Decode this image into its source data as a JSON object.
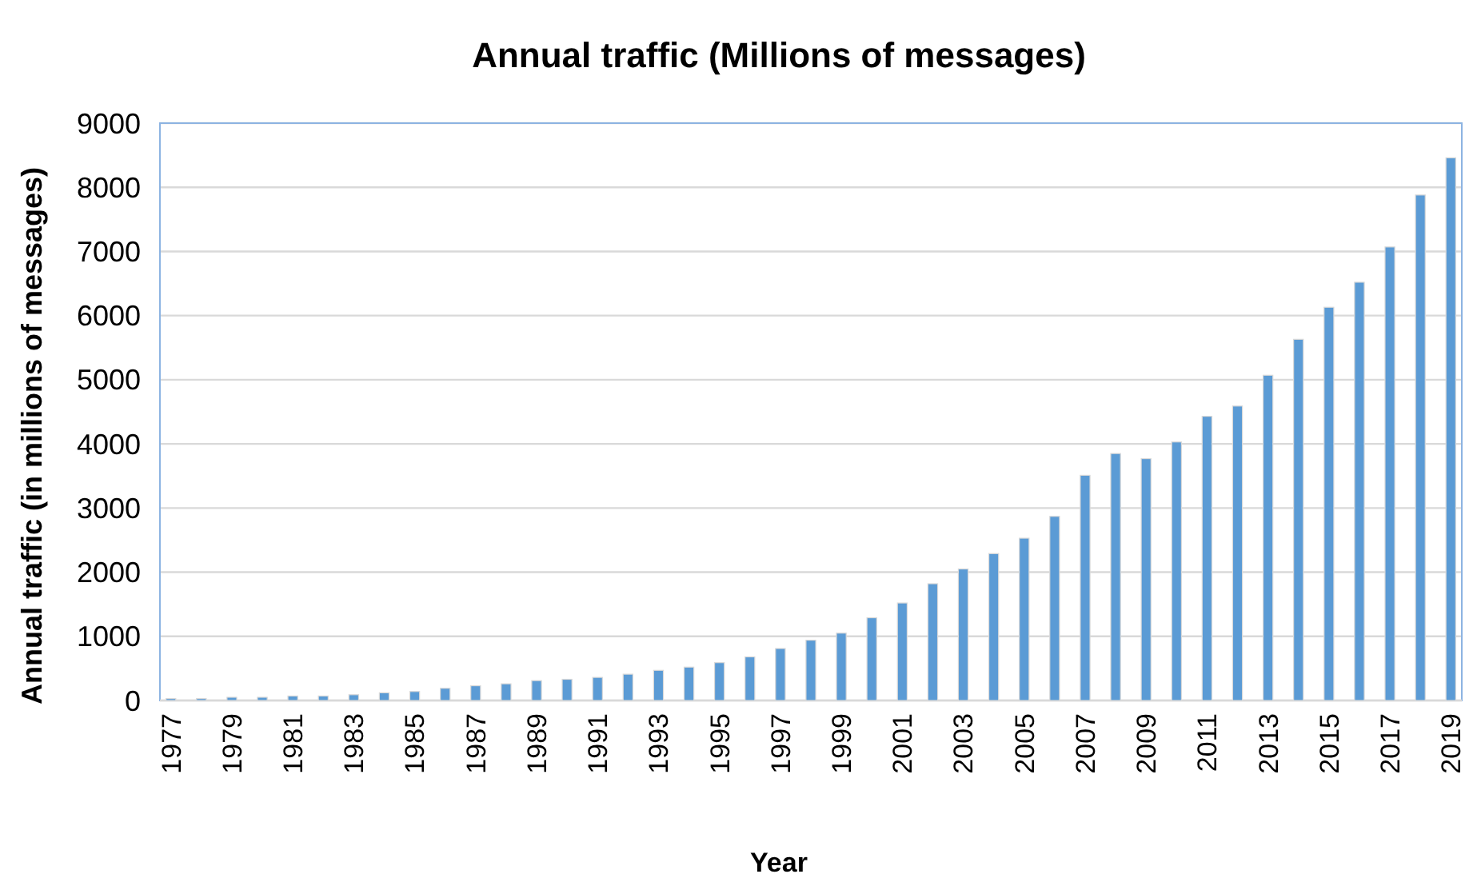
{
  "chart_data": {
    "type": "bar",
    "title": "Annual traffic (Millions of messages)",
    "xlabel": "Year",
    "ylabel": "Annual traffic (in millions of messages)",
    "categories": [
      "1977",
      null,
      "1979",
      null,
      "1981",
      null,
      "1983",
      null,
      "1985",
      null,
      "1987",
      null,
      "1989",
      null,
      "1991",
      null,
      "1993",
      null,
      "1995",
      null,
      "1997",
      null,
      "1999",
      null,
      "2001",
      null,
      "2003",
      null,
      "2005",
      null,
      "2007",
      null,
      "2009",
      null,
      "2011",
      null,
      "2013",
      null,
      "2015",
      null,
      "2017",
      null,
      "2019"
    ],
    "values": [
      30,
      30,
      50,
      50,
      70,
      70,
      90,
      120,
      140,
      190,
      230,
      260,
      310,
      330,
      360,
      410,
      470,
      520,
      590,
      680,
      810,
      940,
      1050,
      1290,
      1520,
      1820,
      2050,
      2290,
      2530,
      2870,
      3510,
      3850,
      3770,
      4030,
      4430,
      4590,
      5070,
      5630,
      6130,
      6520,
      7070,
      7880,
      8460
    ],
    "color": "#5b9bd5",
    "ylim": [
      0,
      9000
    ],
    "yticks": [
      0,
      1000,
      2000,
      3000,
      4000,
      5000,
      6000,
      7000,
      8000,
      9000
    ],
    "grid": "y"
  }
}
